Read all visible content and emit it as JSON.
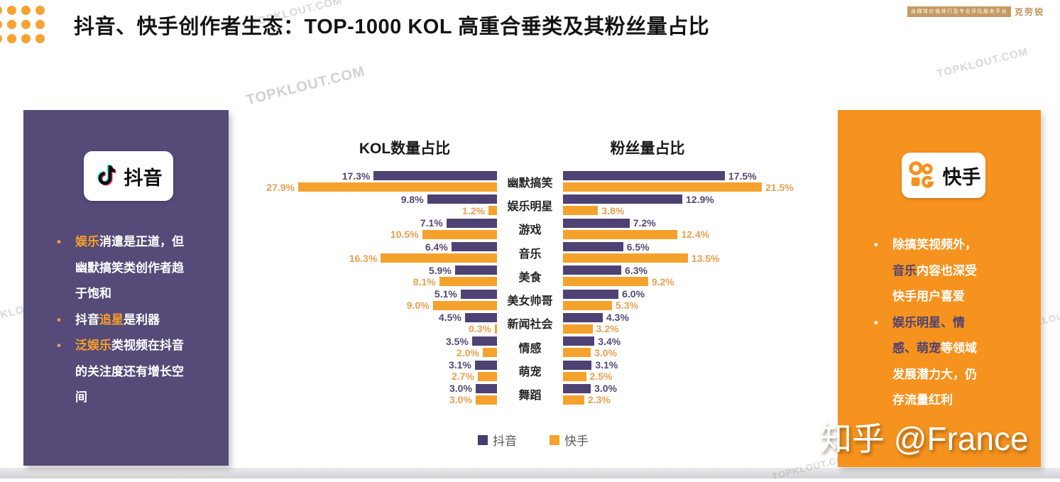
{
  "header": {
    "title": "抖音、快手创作者生态：TOP-1000 KOL 高重合垂类及其粉丝量占比",
    "badge_small_text": "自媒体价值排行及专业评估服务平台",
    "badge_brand": "克劳锐"
  },
  "watermark": {
    "text": "TOPKLOUT.COM"
  },
  "zhihu_watermark": "知乎 @France",
  "left_panel": {
    "platform": "抖音",
    "logo_text": "抖音",
    "bullets": [
      [
        {
          "text": "娱乐",
          "hl": true
        },
        {
          "text": "消遣是正道，但幽默搞笑类创作者趋于饱和",
          "hl": false
        }
      ],
      [
        {
          "text": "抖音",
          "hl": false
        },
        {
          "text": "追星",
          "hl": true
        },
        {
          "text": "是利器",
          "hl": false
        }
      ],
      [
        {
          "text": "泛娱乐",
          "hl": true
        },
        {
          "text": "类视频在抖音的关注度还有增长空间",
          "hl": false
        }
      ]
    ]
  },
  "right_panel": {
    "platform": "快手",
    "logo_text": "快手",
    "bullets": [
      [
        {
          "text": "除搞笑视频外，",
          "hl": false
        },
        {
          "text": "音乐",
          "hl": true
        },
        {
          "text": "内容也深受快手用户喜爱",
          "hl": false
        }
      ],
      [
        {
          "text": "娱乐明星、情感、萌宠",
          "hl": true
        },
        {
          "text": "等领域发展潜力大，仍存流量红利",
          "hl": false
        }
      ]
    ]
  },
  "chart_data": {
    "type": "bar",
    "orientation": "horizontal-mirrored",
    "unit": "%",
    "categories": [
      "幽默搞笑",
      "娱乐明星",
      "游戏",
      "音乐",
      "美食",
      "美女帅哥",
      "新闻社会",
      "情感",
      "萌宠",
      "舞蹈"
    ],
    "charts": [
      {
        "title": "KOL数量占比",
        "side": "left",
        "xlim": [
          0,
          28
        ],
        "series": [
          {
            "name": "抖音",
            "values": [
              17.3,
              9.8,
              7.1,
              6.4,
              5.9,
              5.1,
              4.5,
              3.5,
              3.1,
              3.0
            ]
          },
          {
            "name": "快手",
            "values": [
              27.9,
              1.2,
              10.5,
              16.3,
              8.1,
              9.0,
              0.3,
              2.0,
              2.7,
              3.0
            ]
          }
        ]
      },
      {
        "title": "粉丝量占比",
        "side": "right",
        "xlim": [
          0,
          22
        ],
        "series": [
          {
            "name": "抖音",
            "values": [
              17.5,
              12.9,
              7.2,
              6.5,
              6.3,
              6.0,
              4.3,
              3.4,
              3.1,
              3.0
            ]
          },
          {
            "name": "快手",
            "values": [
              21.5,
              3.8,
              12.4,
              13.5,
              9.2,
              5.3,
              3.2,
              3.0,
              2.5,
              2.3
            ]
          }
        ]
      }
    ],
    "legend": {
      "position": "bottom-center",
      "items": [
        {
          "label": "抖音"
        },
        {
          "label": "快手"
        }
      ]
    },
    "colors": {
      "douyin_bar": "#4E4173",
      "kuaishou_bar": "#F5A22D",
      "douyin_panel": "#564A78",
      "kuaishou_panel": "#F6921E",
      "douyin_value_label": "#544875",
      "kuaishou_value_label": "#E9A050"
    }
  }
}
